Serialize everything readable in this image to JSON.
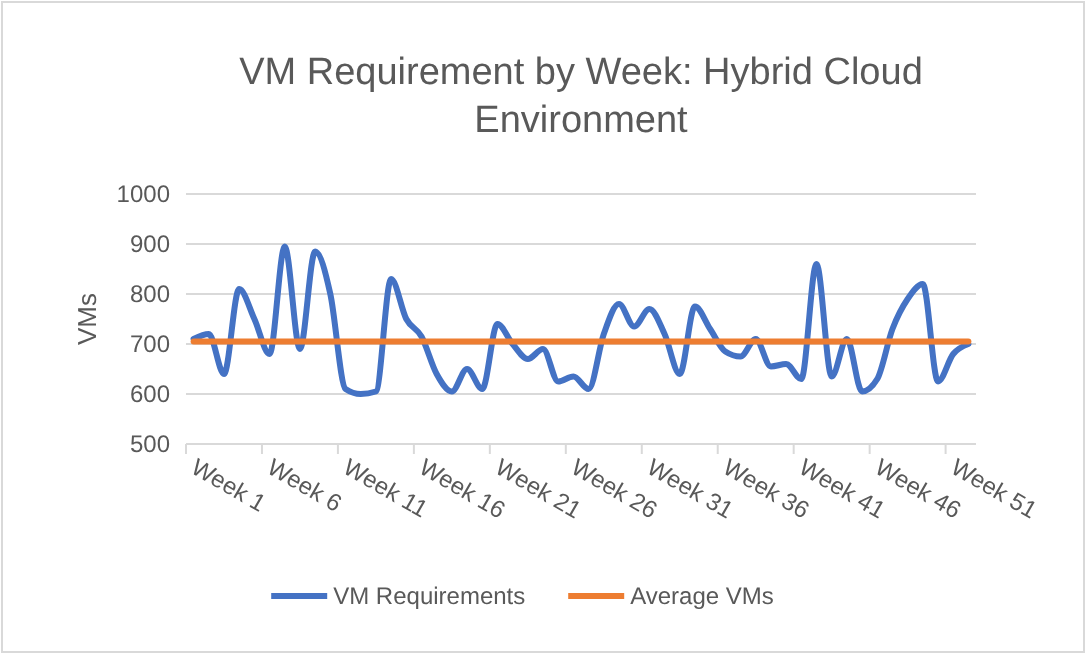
{
  "chart_data": {
    "type": "line",
    "title": "VM Requirement by Week: Hybrid Cloud Environment",
    "ylabel": "VMs",
    "categories": [
      "Week 1",
      null,
      null,
      null,
      null,
      "Week 6",
      null,
      null,
      null,
      null,
      "Week 11",
      null,
      null,
      null,
      null,
      "Week 16",
      null,
      null,
      null,
      null,
      "Week 21",
      null,
      null,
      null,
      null,
      "Week 26",
      null,
      null,
      null,
      null,
      "Week 31",
      null,
      null,
      null,
      null,
      "Week 36",
      null,
      null,
      null,
      null,
      "Week 41",
      null,
      null,
      null,
      null,
      "Week 46",
      null,
      null,
      null,
      null,
      "Week 51",
      null
    ],
    "series": [
      {
        "name": "VM Requirements",
        "color": "#4472c4",
        "values": [
          710,
          720,
          640,
          810,
          750,
          680,
          895,
          690,
          885,
          800,
          610,
          600,
          605,
          830,
          750,
          715,
          640,
          605,
          650,
          610,
          740,
          700,
          670,
          690,
          625,
          635,
          610,
          720,
          780,
          735,
          770,
          720,
          640,
          775,
          730,
          685,
          675,
          710,
          655,
          660,
          630,
          860,
          635,
          710,
          605,
          630,
          730,
          790,
          820,
          625,
          680,
          700
        ]
      },
      {
        "name": "Average VMs",
        "color": "#ed7d31",
        "values": [
          705,
          705,
          705,
          705,
          705,
          705,
          705,
          705,
          705,
          705,
          705,
          705,
          705,
          705,
          705,
          705,
          705,
          705,
          705,
          705,
          705,
          705,
          705,
          705,
          705,
          705,
          705,
          705,
          705,
          705,
          705,
          705,
          705,
          705,
          705,
          705,
          705,
          705,
          705,
          705,
          705,
          705,
          705,
          705,
          705,
          705,
          705,
          705,
          705,
          705,
          705,
          705
        ]
      }
    ],
    "ylim": [
      500,
      1000
    ],
    "yticks": [
      500,
      600,
      700,
      800,
      900,
      1000
    ],
    "grid": "y",
    "legend": "bottom"
  }
}
